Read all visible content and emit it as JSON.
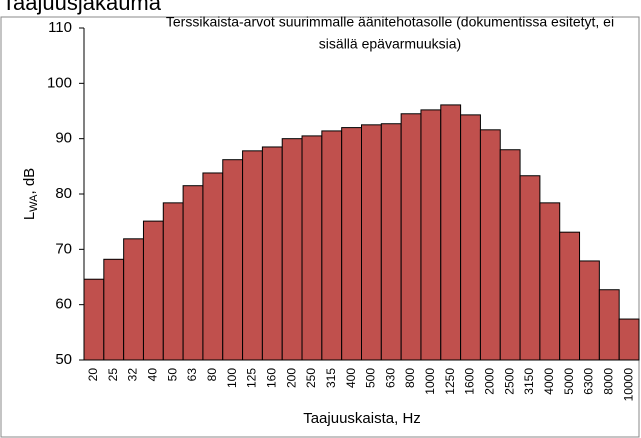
{
  "page_heading": "Taajuusjakauma",
  "chart_data": {
    "type": "bar",
    "title": [
      "Terssikaista-arvot suurimmalle äänitehotasolle (dokumentissa esitetyt, ei",
      "sisällä epävarmuuksia)"
    ],
    "ylabel": [
      "L",
      "WA",
      ", dB"
    ],
    "xlabel": "Taajuuskaista,  Hz",
    "categories": [
      "20",
      "25",
      "32",
      "40",
      "50",
      "63",
      "80",
      "100",
      "125",
      "160",
      "200",
      "250",
      "315",
      "400",
      "500",
      "630",
      "800",
      "1000",
      "1250",
      "1600",
      "2000",
      "2500",
      "3150",
      "4000",
      "5000",
      "6300",
      "8000",
      "10000"
    ],
    "values": [
      64.6,
      68.2,
      71.9,
      75.1,
      78.4,
      81.5,
      83.8,
      86.2,
      87.8,
      88.5,
      90.0,
      90.5,
      91.4,
      92.0,
      92.5,
      92.7,
      94.5,
      95.2,
      96.1,
      94.3,
      91.6,
      88.0,
      83.3,
      78.4,
      73.1,
      67.9,
      62.7,
      57.4
    ],
    "color": "#c0504d",
    "ylim": [
      50,
      110
    ],
    "yticks": [
      50,
      60,
      70,
      80,
      90,
      100,
      110
    ],
    "grid": false
  }
}
